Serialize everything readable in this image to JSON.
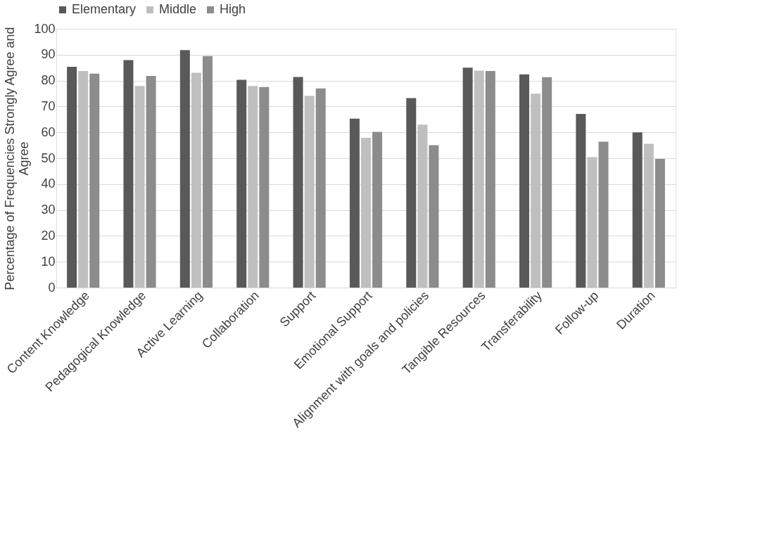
{
  "chart_data": {
    "type": "bar",
    "ylabel": "Percentage of Frequencies Strongly Agree and Agree",
    "categories": [
      "Content Knowledge",
      "Pedagogical Knowledge",
      "Active Learning",
      "Collaboration",
      "Support",
      "Emotional Support",
      "Alignment with goals and policies",
      "Tangible Resources",
      "Transferability",
      "Follow-up",
      "Duration"
    ],
    "series": [
      {
        "name": "Elementary",
        "color": "#595959",
        "values": [
          85.3,
          87.9,
          91.8,
          80.3,
          81.4,
          65.3,
          73.2,
          85.0,
          82.4,
          67.1,
          60.0
        ]
      },
      {
        "name": "Middle",
        "color": "#bfbfbf",
        "values": [
          83.7,
          77.9,
          83.0,
          77.9,
          74.1,
          57.9,
          63.0,
          83.8,
          74.9,
          50.4,
          55.6
        ]
      },
      {
        "name": "High",
        "color": "#8c8c8c",
        "values": [
          82.7,
          81.8,
          89.5,
          77.5,
          77.0,
          60.2,
          55.0,
          83.7,
          81.3,
          56.4,
          49.7
        ]
      }
    ],
    "ylim": [
      0,
      100
    ],
    "yticks": [
      0,
      10,
      20,
      30,
      40,
      50,
      60,
      70,
      80,
      90,
      100
    ],
    "grid": "y",
    "legend": "top"
  }
}
